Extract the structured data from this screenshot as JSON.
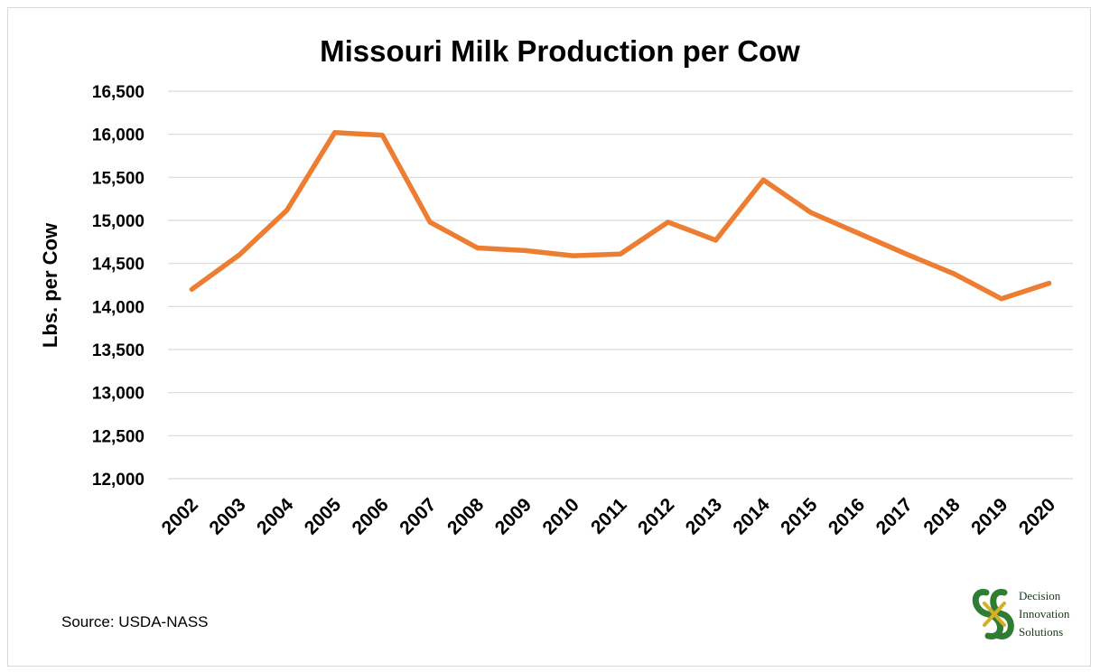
{
  "chart_data": {
    "type": "line",
    "title": "Missouri Milk Production per Cow",
    "xlabel": "",
    "ylabel": "Lbs. per Cow",
    "categories": [
      "2002",
      "2003",
      "2004",
      "2005",
      "2006",
      "2007",
      "2008",
      "2009",
      "2010",
      "2011",
      "2012",
      "2013",
      "2014",
      "2015",
      "2016",
      "2017",
      "2018",
      "2019",
      "2020"
    ],
    "series": [
      {
        "values": [
          14200,
          14600,
          15120,
          16020,
          15990,
          14980,
          14680,
          14650,
          14590,
          14610,
          14980,
          14770,
          15470,
          15090,
          14850,
          14610,
          14380,
          14090,
          14270
        ],
        "color": "#ed7d31"
      }
    ],
    "ylim": [
      12000,
      16500
    ],
    "yticks": [
      "16,500",
      "16,000",
      "15,500",
      "15,000",
      "14,500",
      "14,000",
      "13,500",
      "13,000",
      "12,500",
      "12,000"
    ],
    "grid": true,
    "legend": "none"
  },
  "source": "Source: USDA-NASS",
  "logo": {
    "line1": "Decision",
    "line2": "Innovation",
    "line3": "Solutions",
    "colors": {
      "green": "#2e7d32",
      "gold": "#d4b02a"
    }
  }
}
